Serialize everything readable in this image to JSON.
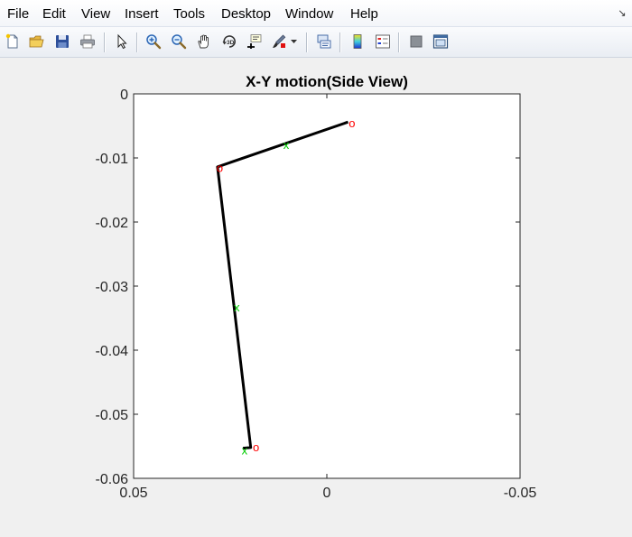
{
  "menu": {
    "items": [
      "File",
      "Edit",
      "View",
      "Insert",
      "Tools",
      "Desktop",
      "Window",
      "Help"
    ]
  },
  "toolbar": {
    "buttons": [
      {
        "name": "new-figure-icon"
      },
      {
        "name": "open-file-icon"
      },
      {
        "name": "save-figure-icon"
      },
      {
        "name": "print-figure-icon"
      },
      {
        "name": "edit-plot-arrow-icon"
      },
      {
        "name": "zoom-in-icon"
      },
      {
        "name": "zoom-out-icon"
      },
      {
        "name": "pan-hand-icon"
      },
      {
        "name": "rotate-3d-icon"
      },
      {
        "name": "data-cursor-icon"
      },
      {
        "name": "brush-icon"
      },
      {
        "name": "link-plot-icon"
      },
      {
        "name": "insert-colorbar-icon"
      },
      {
        "name": "insert-legend-icon"
      },
      {
        "name": "hide-plot-tools-icon"
      },
      {
        "name": "show-plot-tools-icon"
      }
    ]
  },
  "colors": {
    "link_line": "#000000",
    "joint_marker": "#ff0000",
    "com_marker": "#00cc00"
  },
  "chart_data": {
    "type": "line",
    "title": "X-Y motion(Side View)",
    "xlabel": "",
    "ylabel": "",
    "xlim": [
      0.05,
      -0.05
    ],
    "ylim": [
      -0.06,
      0
    ],
    "x_reversed": true,
    "xticks": [
      0.05,
      0,
      -0.05
    ],
    "xtick_labels": [
      "0.05",
      "0",
      "-0.05"
    ],
    "yticks": [
      0,
      -0.01,
      -0.02,
      -0.03,
      -0.04,
      -0.05,
      -0.06
    ],
    "ytick_labels": [
      "0",
      "-0.01",
      "-0.02",
      "-0.03",
      "-0.04",
      "-0.05",
      "-0.06"
    ],
    "grid": false,
    "series": [
      {
        "kind": "link-line",
        "x": [
          -0.0055,
          0.0283,
          0.0197,
          0.0217
        ],
        "y": [
          -0.0044,
          -0.0114,
          -0.0552,
          -0.0553
        ]
      },
      {
        "kind": "joint-marker",
        "marker": "o",
        "x": [
          -0.0065,
          0.0277,
          0.0183
        ],
        "y": [
          -0.0045,
          -0.0115,
          -0.0551
        ]
      },
      {
        "kind": "com-marker",
        "marker": "x",
        "x": [
          0.0105,
          0.0233,
          0.0213
        ],
        "y": [
          -0.008,
          -0.0334,
          -0.0557
        ]
      }
    ]
  }
}
